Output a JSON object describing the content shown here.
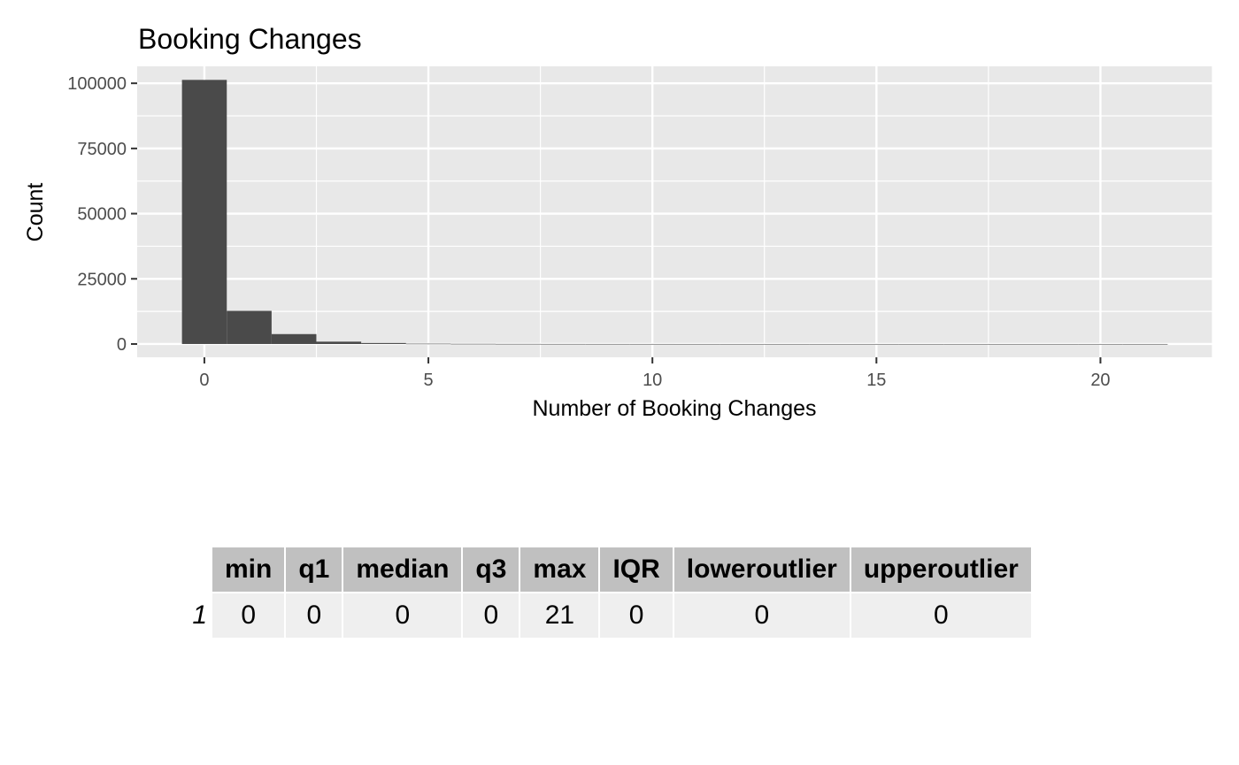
{
  "chart_data": {
    "type": "bar",
    "title": "Booking Changes",
    "xlabel": "Number of Booking Changes",
    "ylabel": "Count",
    "x_ticks": [
      0,
      5,
      10,
      15,
      20
    ],
    "y_ticks": [
      0,
      25000,
      50000,
      75000,
      100000
    ],
    "xlim": [
      -1.5,
      22.5
    ],
    "ylim": [
      -5100,
      106500
    ],
    "grid": true,
    "bar_color": "#4a4a4a",
    "panel_color": "#e8e8e8",
    "bin_width": 1,
    "x": [
      0,
      1,
      2,
      3,
      4,
      5,
      6,
      7,
      8,
      9,
      10,
      11,
      12,
      13,
      14,
      15,
      16,
      17,
      18,
      19,
      20,
      21
    ],
    "values": [
      101300,
      12700,
      3800,
      900,
      380,
      120,
      60,
      30,
      15,
      10,
      8,
      5,
      3,
      3,
      2,
      3,
      2,
      2,
      1,
      1,
      1,
      1
    ]
  },
  "table": {
    "columns": [
      "min",
      "q1",
      "median",
      "q3",
      "max",
      "IQR",
      "loweroutlier",
      "upperoutlier"
    ],
    "rows": [
      {
        "name": "1",
        "cells": [
          "0",
          "0",
          "0",
          "0",
          "21",
          "0",
          "0",
          "0"
        ]
      }
    ]
  }
}
